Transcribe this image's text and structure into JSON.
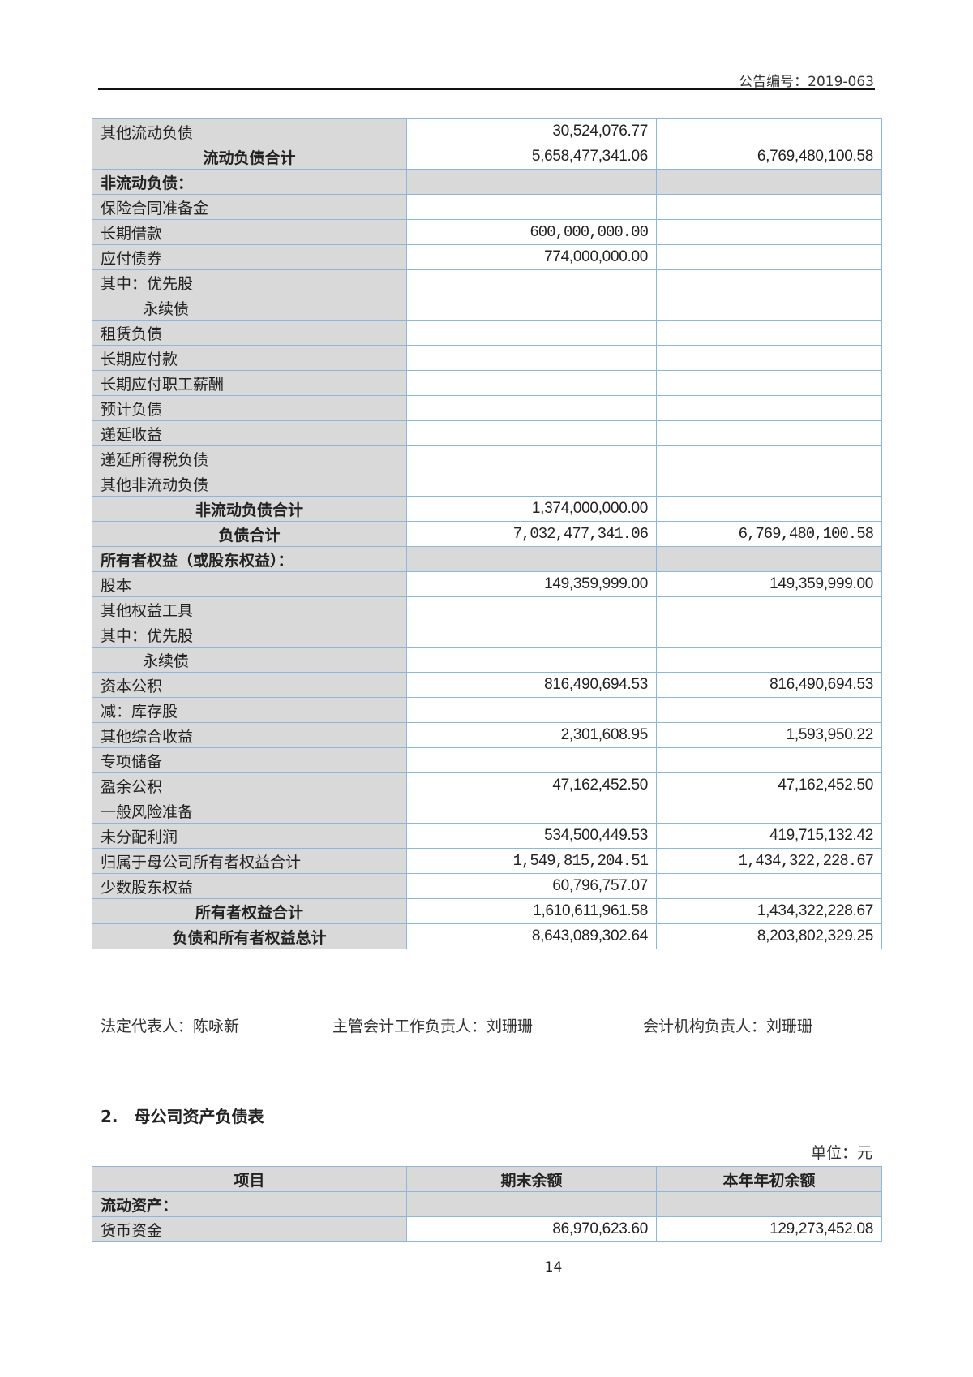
{
  "header": {
    "doc_number": "公告编号：2019-063"
  },
  "table1": {
    "rows": [
      {
        "label": "其他流动负债",
        "end": "30,524,076.77",
        "begin": ""
      },
      {
        "label": "流动负债合计",
        "end": "5,658,477,341.06",
        "begin": "6,769,480,100.58",
        "type": "total"
      },
      {
        "label": "非流动负债：",
        "end": "",
        "begin": "",
        "type": "section"
      },
      {
        "label": "保险合同准备金",
        "end": "",
        "begin": ""
      },
      {
        "label": "长期借款",
        "end": "600,000,000.00",
        "begin": "",
        "serif": true
      },
      {
        "label": "应付债券",
        "end": "774,000,000.00",
        "begin": ""
      },
      {
        "label": "其中：优先股",
        "end": "",
        "begin": ""
      },
      {
        "label": "永续债",
        "end": "",
        "begin": "",
        "indent": true
      },
      {
        "label": "租赁负债",
        "end": "",
        "begin": ""
      },
      {
        "label": "长期应付款",
        "end": "",
        "begin": ""
      },
      {
        "label": "长期应付职工薪酬",
        "end": "",
        "begin": ""
      },
      {
        "label": "预计负债",
        "end": "",
        "begin": ""
      },
      {
        "label": "递延收益",
        "end": "",
        "begin": ""
      },
      {
        "label": "递延所得税负债",
        "end": "",
        "begin": ""
      },
      {
        "label": "其他非流动负债",
        "end": "",
        "begin": ""
      },
      {
        "label": "非流动负债合计",
        "end": "1,374,000,000.00",
        "begin": "",
        "type": "total"
      },
      {
        "label": "负债合计",
        "end": "7,032,477,341.06",
        "begin": "6,769,480,100.58",
        "type": "total",
        "serif": true
      },
      {
        "label": "所有者权益（或股东权益）：",
        "end": "",
        "begin": "",
        "type": "section"
      },
      {
        "label": "股本",
        "end": "149,359,999.00",
        "begin": "149,359,999.00"
      },
      {
        "label": "其他权益工具",
        "end": "",
        "begin": ""
      },
      {
        "label": "其中：优先股",
        "end": "",
        "begin": ""
      },
      {
        "label": "永续债",
        "end": "",
        "begin": "",
        "indent": true
      },
      {
        "label": "资本公积",
        "end": "816,490,694.53",
        "begin": "816,490,694.53"
      },
      {
        "label": "减：库存股",
        "end": "",
        "begin": ""
      },
      {
        "label": "其他综合收益",
        "end": "2,301,608.95",
        "begin": "1,593,950.22"
      },
      {
        "label": "专项储备",
        "end": "",
        "begin": ""
      },
      {
        "label": "盈余公积",
        "end": "47,162,452.50",
        "begin": "47,162,452.50"
      },
      {
        "label": "一般风险准备",
        "end": "",
        "begin": ""
      },
      {
        "label": "未分配利润",
        "end": "534,500,449.53",
        "begin": "419,715,132.42"
      },
      {
        "label": "归属于母公司所有者权益合计",
        "end": "1,549,815,204.51",
        "begin": "1,434,322,228.67",
        "serif": true
      },
      {
        "label": "少数股东权益",
        "end": "60,796,757.07",
        "begin": ""
      },
      {
        "label": "所有者权益合计",
        "end": "1,610,611,961.58",
        "begin": "1,434,322,228.67",
        "type": "total"
      },
      {
        "label": "负债和所有者权益总计",
        "end": "8,643,089,302.64",
        "begin": "8,203,802,329.25",
        "type": "total"
      }
    ]
  },
  "signatures": {
    "legal_rep": "法定代表人：陈咏新",
    "accounting_head": "主管会计工作负责人：刘珊珊",
    "accounting_org_head": "会计机构负责人：刘珊珊"
  },
  "section2": {
    "title": "2.　母公司资产负债表",
    "unit": "单位：元",
    "columns": [
      "项目",
      "期末余额",
      "本年年初余额"
    ],
    "rows": [
      {
        "label": "流动资产：",
        "end": "",
        "begin": "",
        "type": "section"
      },
      {
        "label": "货币资金",
        "end": "86,970,623.60",
        "begin": "129,273,452.08"
      }
    ]
  },
  "footer": {
    "page_number": "14"
  }
}
